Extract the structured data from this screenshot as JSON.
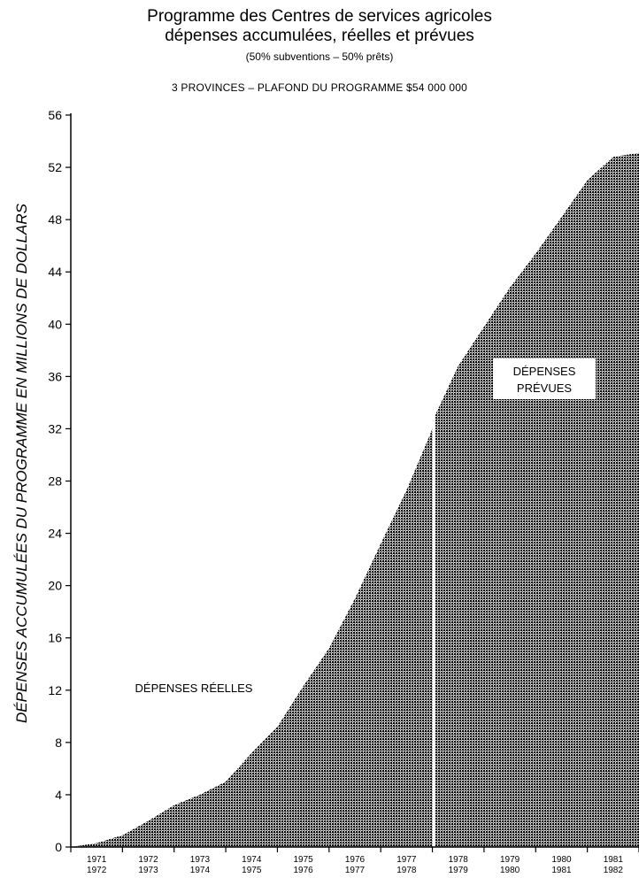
{
  "chart_data": {
    "type": "area",
    "title": "Programme des Centres de services agricoles",
    "title_line2": "dépenses accumulées, réelles et prévues",
    "subtitle": "(50% subventions – 50% prêts)",
    "caption": "3 PROVINCES – PLAFOND DU PROGRAMME $54 000 000",
    "ylabel": "DÉPENSES ACCUMULÉES DU PROGRAMME EN MILLIONS DE DOLLARS",
    "xlabel": "",
    "ylim": [
      0,
      56
    ],
    "yticks": [
      0,
      4,
      8,
      12,
      16,
      20,
      24,
      28,
      32,
      36,
      40,
      44,
      48,
      52,
      56
    ],
    "categories": [
      {
        "top": "1971",
        "bottom": "1972"
      },
      {
        "top": "1972",
        "bottom": "1973"
      },
      {
        "top": "1973",
        "bottom": "1974"
      },
      {
        "top": "1974",
        "bottom": "1975"
      },
      {
        "top": "1975",
        "bottom": "1976"
      },
      {
        "top": "1976",
        "bottom": "1977"
      },
      {
        "top": "1977",
        "bottom": "1978"
      },
      {
        "top": "1978",
        "bottom": "1979"
      },
      {
        "top": "1979",
        "bottom": "1980"
      },
      {
        "top": "1980",
        "bottom": "1981"
      },
      {
        "top": "1981",
        "bottom": "1982"
      }
    ],
    "xlim": [
      0,
      11
    ],
    "series": [
      {
        "name": "DÉPENSES RÉELLES",
        "points": [
          [
            0,
            0
          ],
          [
            0.5,
            0.3
          ],
          [
            1,
            0.9
          ],
          [
            1.5,
            2.0
          ],
          [
            2,
            3.2
          ],
          [
            2.5,
            4.0
          ],
          [
            3,
            5.0
          ],
          [
            3.5,
            7.2
          ],
          [
            4,
            9.2
          ],
          [
            4.5,
            12.3
          ],
          [
            5,
            15.2
          ],
          [
            5.5,
            19.0
          ],
          [
            6,
            23.2
          ],
          [
            6.5,
            27.3
          ],
          [
            6.95,
            31.5
          ],
          [
            7.0,
            32.0
          ]
        ]
      },
      {
        "name": "DÉPENSES PRÉVUES",
        "points": [
          [
            7.05,
            33.0
          ],
          [
            7.5,
            36.8
          ],
          [
            8,
            39.8
          ],
          [
            8.5,
            42.8
          ],
          [
            9,
            45.4
          ],
          [
            9.5,
            48.2
          ],
          [
            10,
            51.0
          ],
          [
            10.5,
            52.8
          ],
          [
            11,
            53.1
          ]
        ]
      }
    ],
    "grid": false,
    "legend": "none",
    "fill_color": "#5a5a5a"
  }
}
